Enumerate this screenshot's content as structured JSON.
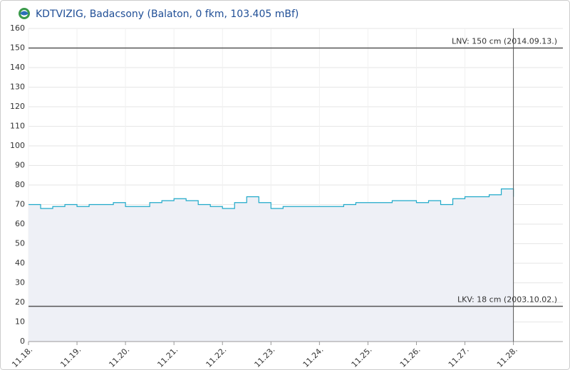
{
  "chart_data": {
    "type": "step",
    "title": "KDTVIZIG, Badacsony (Balaton, 0 fkm, 103.405 mBf)",
    "x": [
      18,
      18.25,
      18.5,
      18.75,
      19,
      19.25,
      19.5,
      19.75,
      20,
      20.25,
      20.5,
      20.75,
      21,
      21.25,
      21.5,
      21.75,
      22,
      22.25,
      22.5,
      22.75,
      23,
      23.25,
      23.5,
      23.75,
      24,
      24.25,
      24.5,
      24.75,
      25,
      25.25,
      25.5,
      25.75,
      26,
      26.25,
      26.5,
      26.75,
      27,
      27.25,
      27.5,
      27.75,
      28
    ],
    "series": [
      {
        "color": "#1fa9c9",
        "fill": "#eef0f6",
        "values": [
          70,
          68,
          69,
          70,
          69,
          70,
          70,
          71,
          69,
          69,
          71,
          72,
          73,
          72,
          70,
          69,
          68,
          71,
          74,
          71,
          68,
          69,
          69,
          69,
          69,
          69,
          70,
          71,
          71,
          71,
          72,
          72,
          71,
          72,
          70,
          73,
          74,
          74,
          75,
          78,
          74
        ]
      }
    ],
    "xlim": [
      18,
      29.02
    ],
    "xticks": [
      {
        "value": 18,
        "label": "11.18."
      },
      {
        "value": 19,
        "label": "11.19."
      },
      {
        "value": 20,
        "label": "11.20."
      },
      {
        "value": 21,
        "label": "11.21."
      },
      {
        "value": 22,
        "label": "11.22."
      },
      {
        "value": 23,
        "label": "11.23."
      },
      {
        "value": 24,
        "label": "11.24."
      },
      {
        "value": 25,
        "label": "11.25."
      },
      {
        "value": 26,
        "label": "11.26."
      },
      {
        "value": 27,
        "label": "11.27."
      },
      {
        "value": 28,
        "label": "11.28."
      }
    ],
    "ylim": [
      0,
      160
    ],
    "yticks": [
      0,
      10,
      20,
      30,
      40,
      50,
      60,
      70,
      80,
      90,
      100,
      110,
      120,
      130,
      140,
      150,
      160
    ],
    "grid": true,
    "reference_lines": [
      {
        "value": 150,
        "label": "LNV: 150 cm (2014.09.13.)"
      },
      {
        "value": 18,
        "label": "LKV: 18 cm (2003.10.02.)"
      }
    ],
    "now_x": 28
  }
}
